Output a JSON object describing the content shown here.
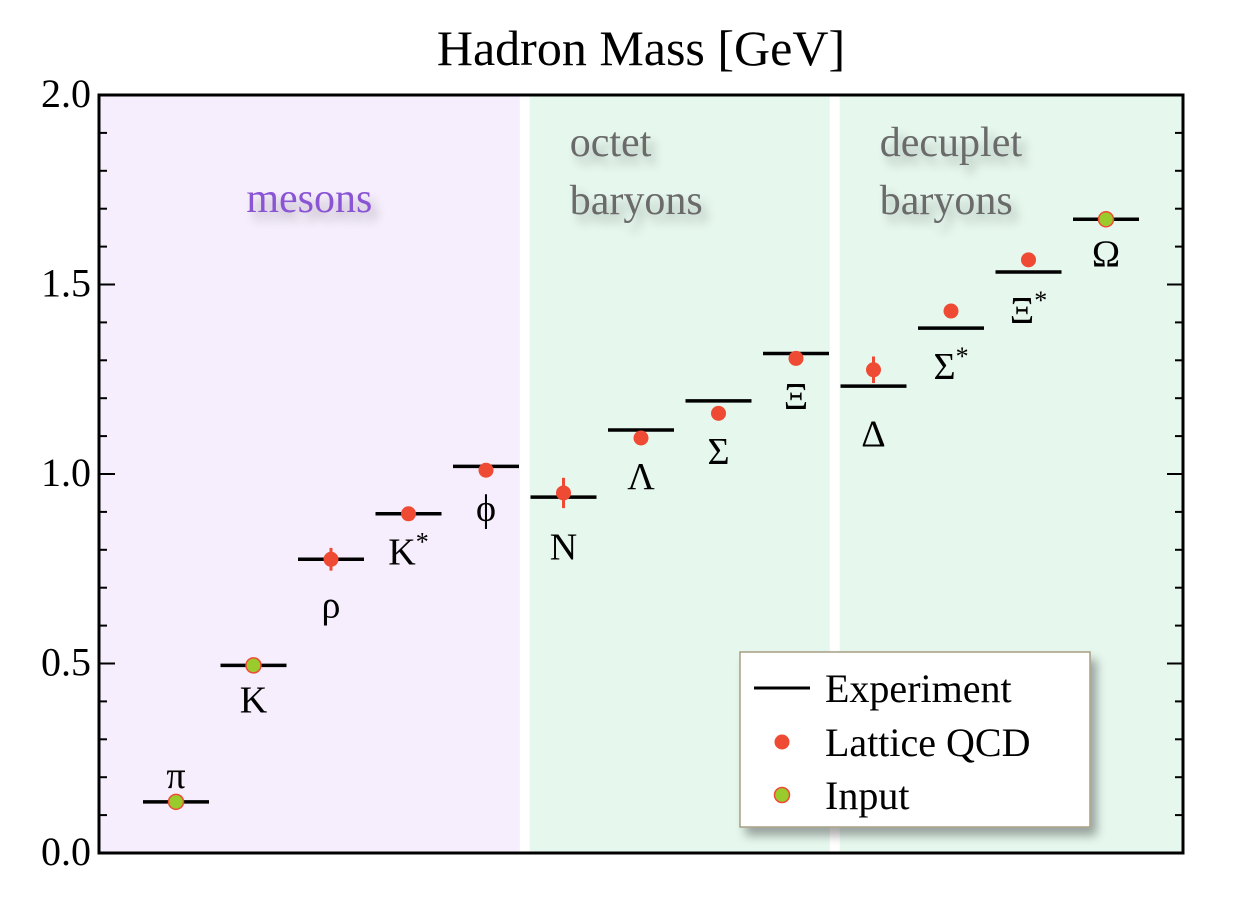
{
  "chart_data": {
    "type": "scatter",
    "title": "Hadron Mass [GeV]",
    "xlabel": "",
    "ylabel": "",
    "ylim": [
      0,
      2.0
    ],
    "y_ticks": [
      "0.0",
      "0.5",
      "1.0",
      "1.5",
      "2.0"
    ],
    "y_tick_values": [
      0,
      0.5,
      1.0,
      1.5,
      2.0
    ],
    "grid": false,
    "regions": [
      {
        "label_lines": [
          "mesons"
        ],
        "color": "#f6eefc",
        "label_color": "#8a55d4",
        "from": 0,
        "to": 5
      },
      {
        "label_lines": [
          "octet",
          "baryons"
        ],
        "color": "#e6f8ee",
        "label_color": "#6b6b6b",
        "from": 5,
        "to": 9
      },
      {
        "label_lines": [
          "decuplet",
          "baryons"
        ],
        "color": "#e6f8ee",
        "label_color": "#6b6b6b",
        "from": 9,
        "to": 13
      }
    ],
    "particles": [
      {
        "label": "π",
        "sup": "",
        "experiment": 0.135,
        "lattice": 0.135,
        "error": 0,
        "input": true,
        "label_pos": "above"
      },
      {
        "label": "K",
        "sup": "",
        "experiment": 0.495,
        "lattice": 0.495,
        "error": 0,
        "input": true,
        "label_pos": "below"
      },
      {
        "label": "ρ",
        "sup": "",
        "experiment": 0.775,
        "lattice": 0.775,
        "error": 0.03,
        "input": false,
        "label_pos": "below"
      },
      {
        "label": "K",
        "sup": "*",
        "experiment": 0.895,
        "lattice": 0.895,
        "error": 0.01,
        "input": false,
        "label_pos": "below"
      },
      {
        "label": "ϕ",
        "sup": "",
        "experiment": 1.02,
        "lattice": 1.01,
        "error": 0.01,
        "input": false,
        "label_pos": "below"
      },
      {
        "label": "N",
        "sup": "",
        "experiment": 0.939,
        "lattice": 0.95,
        "error": 0.04,
        "input": false,
        "label_pos": "below"
      },
      {
        "label": "Λ",
        "sup": "",
        "experiment": 1.116,
        "lattice": 1.095,
        "error": 0.01,
        "input": false,
        "label_pos": "below"
      },
      {
        "label": "Σ",
        "sup": "",
        "experiment": 1.193,
        "lattice": 1.16,
        "error": 0.01,
        "input": false,
        "label_pos": "below"
      },
      {
        "label": "Ξ",
        "sup": "",
        "experiment": 1.318,
        "lattice": 1.305,
        "error": 0.01,
        "input": false,
        "label_pos": "below"
      },
      {
        "label": "Δ",
        "sup": "",
        "experiment": 1.232,
        "lattice": 1.275,
        "error": 0.035,
        "input": false,
        "label_pos": "below"
      },
      {
        "label": "Σ",
        "sup": "*",
        "experiment": 1.385,
        "lattice": 1.43,
        "error": 0.01,
        "input": false,
        "label_pos": "below"
      },
      {
        "label": "Ξ",
        "sup": "*",
        "experiment": 1.533,
        "lattice": 1.565,
        "error": 0.01,
        "input": false,
        "label_pos": "below"
      },
      {
        "label": "Ω",
        "sup": "",
        "experiment": 1.672,
        "lattice": 1.672,
        "error": 0,
        "input": true,
        "label_pos": "below"
      }
    ],
    "legend": {
      "position": "bottom-right",
      "entries": [
        "Experiment",
        "Lattice QCD",
        "Input"
      ]
    },
    "colors": {
      "experiment": "#000000",
      "lattice": "#ef4a34",
      "input_fill": "#9acb2c",
      "input_edge": "#ef4a34"
    }
  }
}
